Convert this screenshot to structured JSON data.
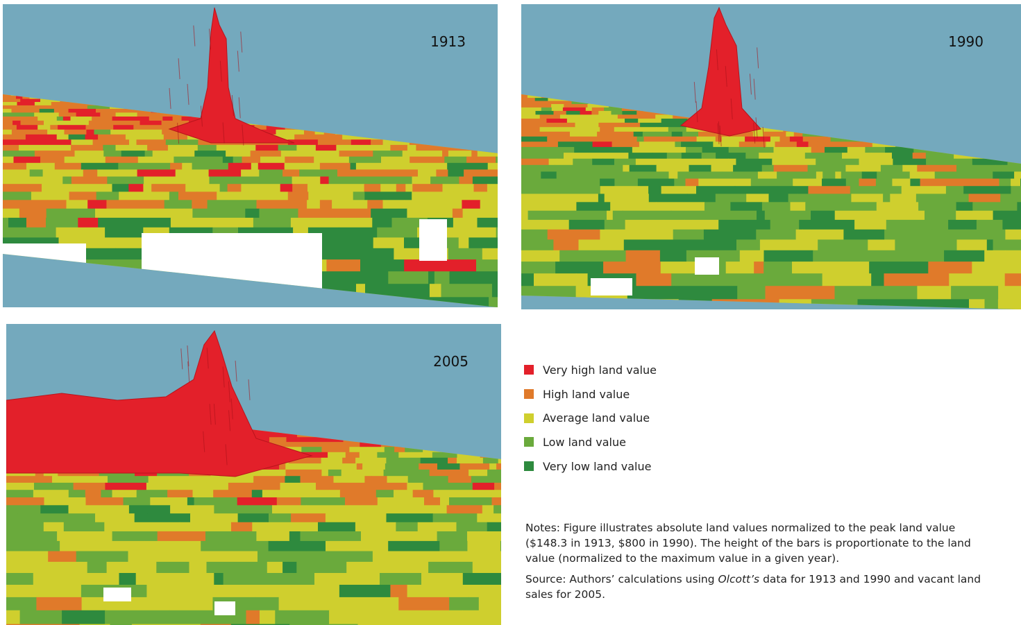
{
  "panels": [
    {
      "year": "1913"
    },
    {
      "year": "1990"
    },
    {
      "year": "2005"
    }
  ],
  "legend": [
    {
      "label": "Very high land value",
      "color": "#e3202a"
    },
    {
      "label": "High land value",
      "color": "#e07a2a"
    },
    {
      "label": "Average land value",
      "color": "#cfcf2e"
    },
    {
      "label": "Low land value",
      "color": "#6aaa3c"
    },
    {
      "label": "Very low land value",
      "color": "#2e8a3e"
    }
  ],
  "notes": "Notes: Figure illustrates absolute land values normalized to the peak land value ($148.3 in 1913, $800 in 1990). The height of the bars is proportionate to the land value (normalized to the maximum value in a given year).",
  "source": {
    "before": "Source: Authors’ calculations using ",
    "italic": "Olcott’s",
    "after": " data for 1913 and 1990 and vacant land sales for 2005."
  }
}
